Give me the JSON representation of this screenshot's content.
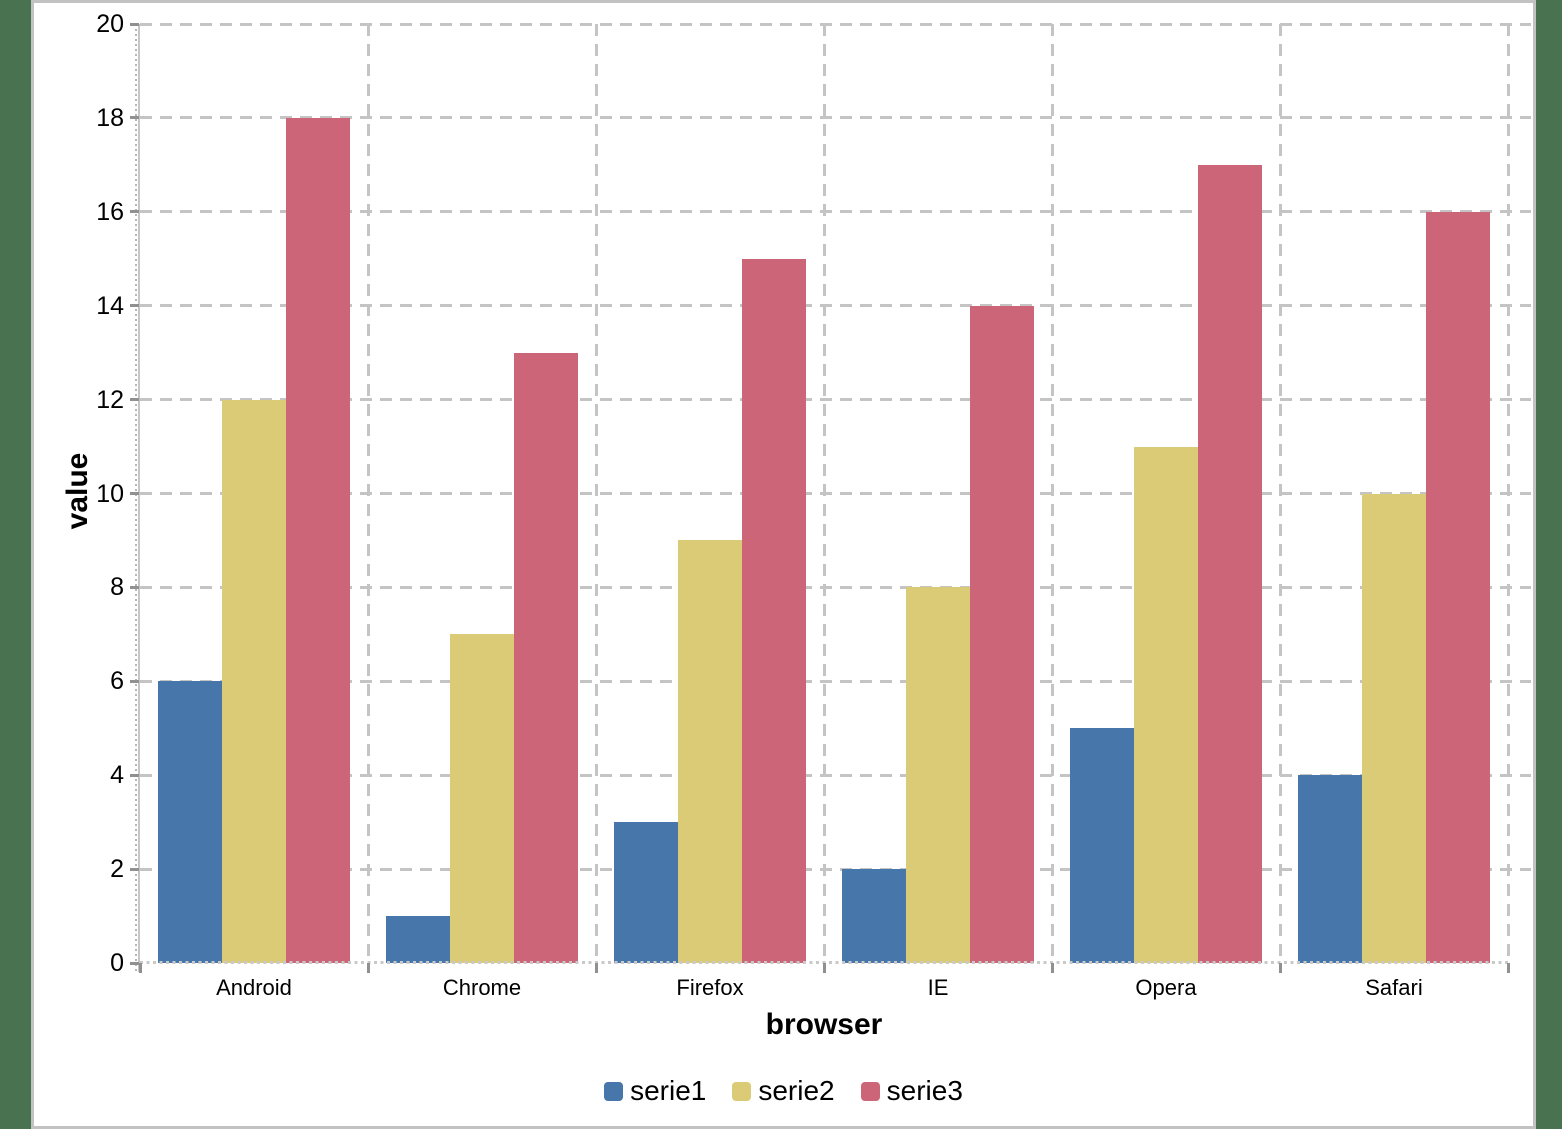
{
  "page": {
    "background_color": "#487250",
    "panel_background": "#ffffff",
    "panel_border_color": "#c2c2c2",
    "grid_color": "#c4c4c4",
    "text_color": "#000000"
  },
  "chart_data": {
    "type": "bar",
    "title": "",
    "xlabel": "browser",
    "ylabel": "value",
    "categories": [
      "Android",
      "Chrome",
      "Firefox",
      "IE",
      "Opera",
      "Safari"
    ],
    "series": [
      {
        "name": "serie1",
        "color": "#4776AB",
        "values": [
          6,
          1,
          3,
          2,
          5,
          4
        ]
      },
      {
        "name": "serie2",
        "color": "#DCCB76",
        "values": [
          12,
          7,
          9,
          8,
          11,
          10
        ]
      },
      {
        "name": "serie3",
        "color": "#CB6577",
        "values": [
          18,
          13,
          15,
          14,
          17,
          16
        ]
      }
    ],
    "ylim": [
      0,
      20
    ],
    "ytick_step": 2,
    "yticks": [
      0,
      2,
      4,
      6,
      8,
      10,
      12,
      14,
      16,
      18,
      20
    ],
    "grid": "dashed",
    "gridlines_horizontal": true,
    "gridlines_vertical": true,
    "legend_position": "bottom",
    "legend_labels": [
      "serie1",
      "serie2",
      "serie3"
    ]
  }
}
